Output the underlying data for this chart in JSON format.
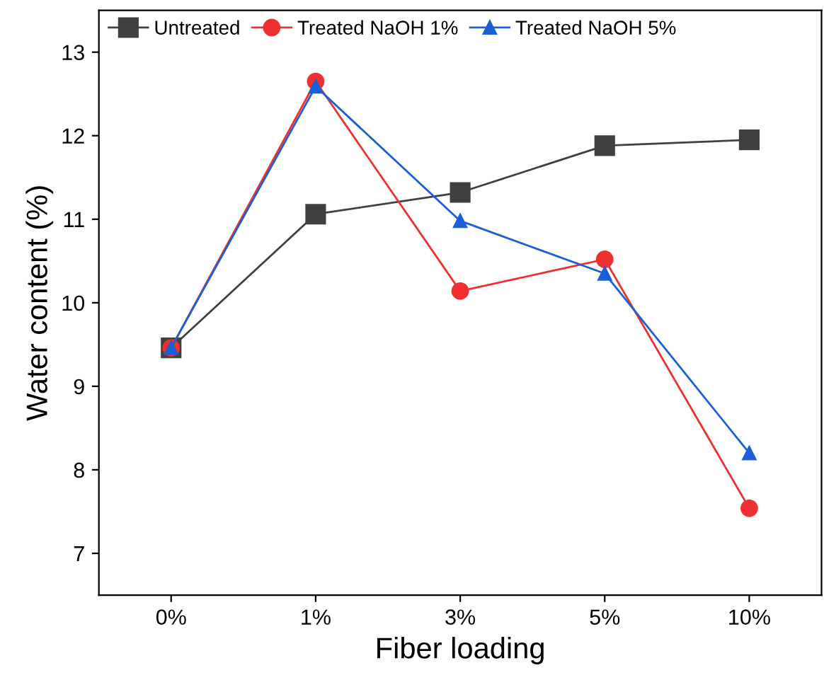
{
  "chart_data": {
    "type": "line",
    "xlabel": "Fiber loading",
    "ylabel": "Water content (%)",
    "categories": [
      "0%",
      "1%",
      "3%",
      "5%",
      "10%"
    ],
    "series": [
      {
        "name": "Untreated",
        "color": "#404040",
        "marker": "square",
        "values": [
          9.46,
          11.06,
          11.32,
          11.88,
          11.95
        ]
      },
      {
        "name": "Treated NaOH 1%",
        "color": "#f03030",
        "marker": "circle",
        "values": [
          9.46,
          12.65,
          10.14,
          10.52,
          7.54
        ]
      },
      {
        "name": "Treated NaOH 5%",
        "color": "#1a5fd8",
        "marker": "triangle",
        "values": [
          9.46,
          12.59,
          10.98,
          10.35,
          8.2
        ]
      }
    ],
    "ylim": [
      6.5,
      13.5
    ],
    "yticks": [
      7,
      8,
      9,
      10,
      11,
      12,
      13
    ],
    "grid": false,
    "legend": "top left",
    "line_style": "solid"
  }
}
